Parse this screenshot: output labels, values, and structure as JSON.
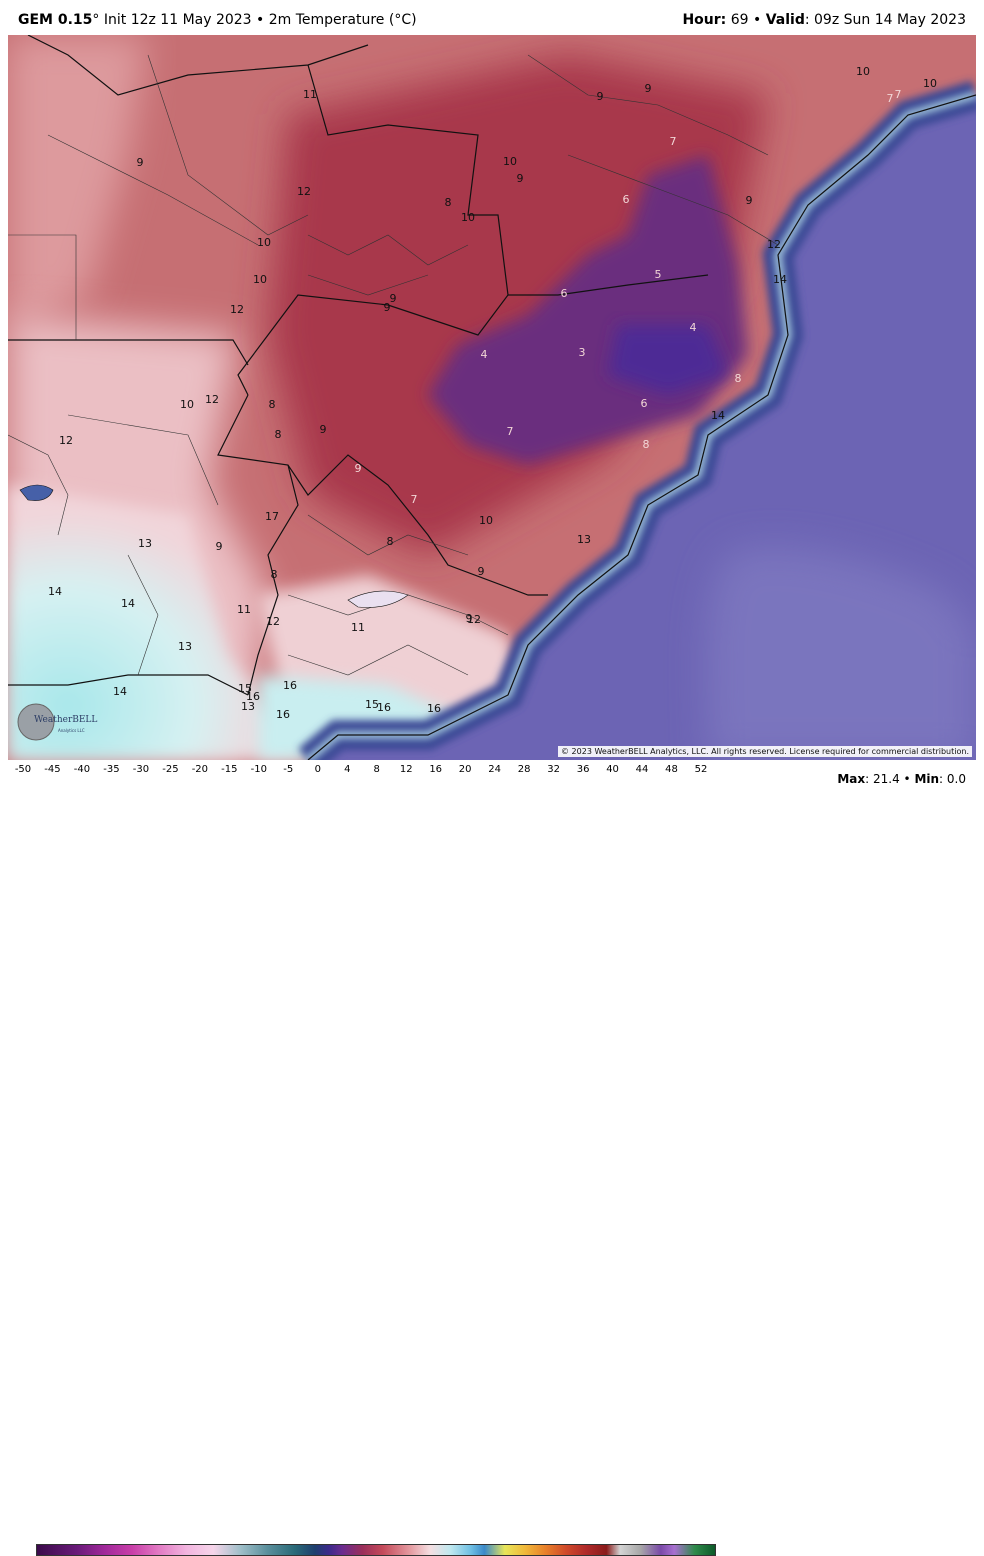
{
  "header": {
    "model": "GEM 0.15",
    "degree": "°",
    "init": " Init 12z 11 May 2023 • 2m Temperature (°C)",
    "hour_label": "Hour:",
    "hour_value": " 69 • ",
    "valid_label": "Valid",
    "valid_value": ": 09z Sun 14 May 2023"
  },
  "copyright": "© 2023 WeatherBELL Analytics, LLC. All rights reserved. License required for commercial distribution.",
  "logo": {
    "text": "WeatherBELL",
    "sub": "Analytics LLC"
  },
  "legend": {
    "ticks": [
      "-50",
      "-45",
      "-40",
      "-35",
      "-30",
      "-25",
      "-20",
      "-15",
      "-10",
      "-5",
      "0",
      "4",
      "8",
      "12",
      "16",
      "20",
      "24",
      "28",
      "32",
      "36",
      "40",
      "44",
      "48",
      "52"
    ]
  },
  "stats": {
    "max_label": "Max",
    "max_value": ": 21.4 • ",
    "min_label": "Min",
    "min_value": ": 0.0"
  },
  "colors": {
    "warm_dark": "#9e2f46",
    "warm_mid": "#c56a6e",
    "warm_light": "#e8b4b6",
    "cold_core": "#5b2c8f",
    "pale": "#f5dfe2",
    "cyan": "#b9eaea",
    "ocean": "#6e63b3",
    "ocean_coast": "#3e4f9a",
    "border": "#111111"
  },
  "labels": [
    {
      "t": "11"
    },
    {
      "t": "9"
    },
    {
      "t": "9"
    },
    {
      "t": "10"
    },
    {
      "t": "7"
    },
    {
      "t": "10"
    },
    {
      "t": "9"
    },
    {
      "t": "12"
    },
    {
      "t": "10"
    },
    {
      "t": "9"
    },
    {
      "t": "8"
    },
    {
      "t": "10"
    },
    {
      "t": "7"
    },
    {
      "t": "6"
    },
    {
      "t": "9"
    },
    {
      "t": "10"
    },
    {
      "t": "10"
    },
    {
      "t": "12"
    },
    {
      "t": "5"
    },
    {
      "t": "14"
    },
    {
      "t": "6"
    },
    {
      "t": "9"
    },
    {
      "t": "9"
    },
    {
      "t": "4"
    },
    {
      "t": "12"
    },
    {
      "t": "4"
    },
    {
      "t": "3"
    },
    {
      "t": "8"
    },
    {
      "t": "10"
    },
    {
      "t": "12"
    },
    {
      "t": "8"
    },
    {
      "t": "6"
    },
    {
      "t": "14"
    },
    {
      "t": "12"
    },
    {
      "t": "8"
    },
    {
      "t": "9"
    },
    {
      "t": "7"
    },
    {
      "t": "8"
    },
    {
      "t": "9"
    },
    {
      "t": "7"
    },
    {
      "t": "8"
    },
    {
      "t": "17"
    },
    {
      "t": "10"
    },
    {
      "t": "13"
    },
    {
      "t": "9"
    },
    {
      "t": "8"
    },
    {
      "t": "13"
    },
    {
      "t": "9"
    },
    {
      "t": "9"
    },
    {
      "t": "14"
    },
    {
      "t": "14"
    },
    {
      "t": "11"
    },
    {
      "t": "12"
    },
    {
      "t": "11"
    },
    {
      "t": "12"
    },
    {
      "t": "13"
    },
    {
      "t": "14"
    },
    {
      "t": "15"
    },
    {
      "t": "16"
    },
    {
      "t": "16"
    },
    {
      "t": "13"
    },
    {
      "t": "16"
    },
    {
      "t": "15"
    },
    {
      "t": "16"
    },
    {
      "t": "16"
    },
    {
      "t": "7"
    }
  ]
}
